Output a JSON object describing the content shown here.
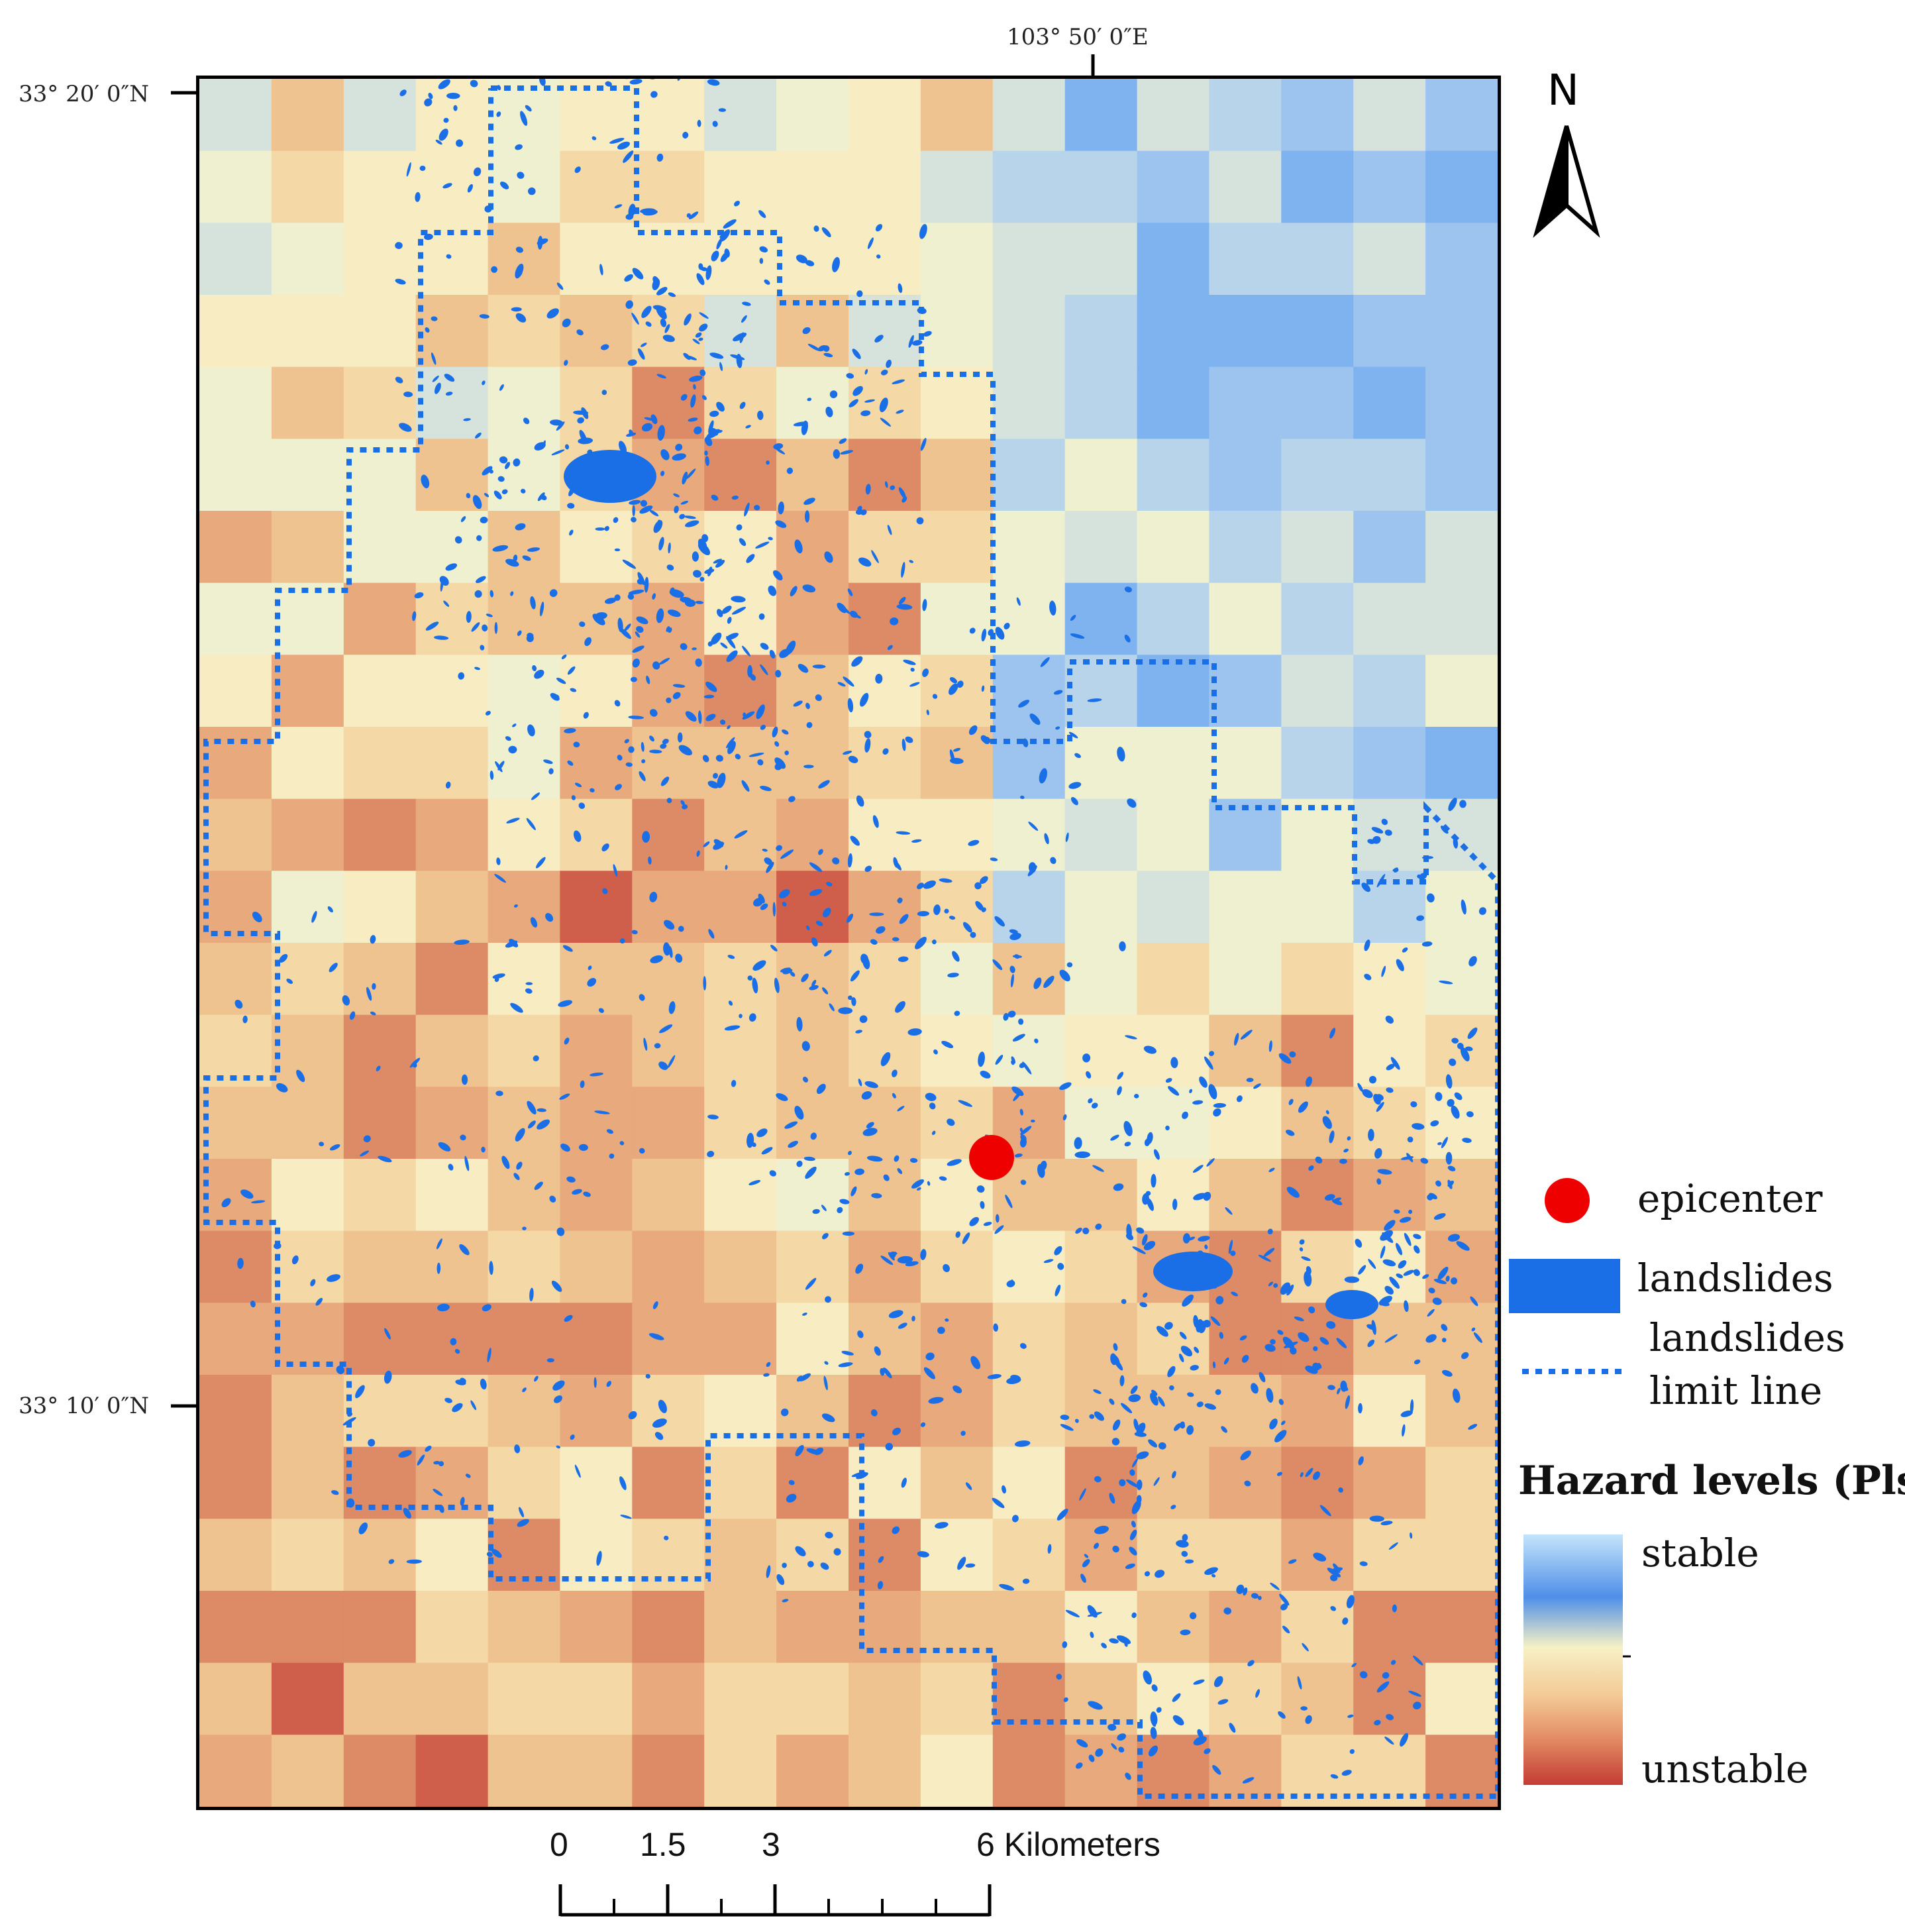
{
  "map": {
    "coordinates": {
      "lon_top": "103°  50′ 0″E",
      "lat_top": "33°  20′ 0″N",
      "lat_bottom": "33°  10′ 0″N"
    },
    "north_arrow": {
      "letter": "N"
    },
    "epicenter_color": "#ee0000",
    "landslide_color": "#1a6fe6",
    "colors": {
      "stable": "#7fb3ef",
      "unstable": "#c9443a"
    }
  },
  "legend": {
    "epicenter": "epicenter",
    "landslides": "landslides",
    "limit_line_1": "landslides",
    "limit_line_2": "limit line",
    "hazard_title": "Hazard levels (Pls)",
    "stable": "stable",
    "unstable": "unstable"
  },
  "scale_bar": {
    "label_0": "0",
    "label_1": "1.5",
    "label_2": "3",
    "label_3": "6 Kilometers"
  }
}
